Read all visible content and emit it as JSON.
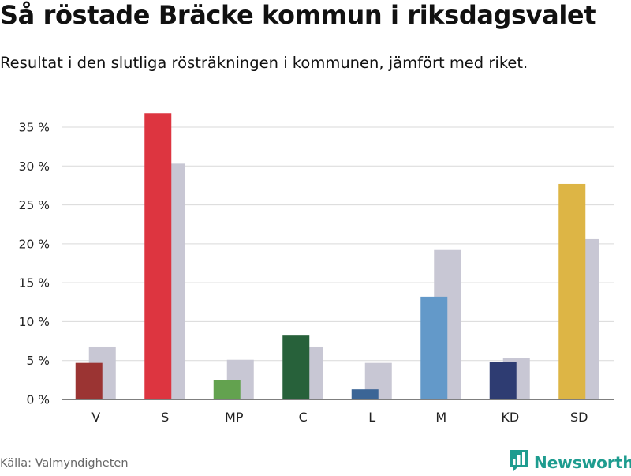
{
  "title": "Så röstade Bräcke kommun i riksdagsvalet",
  "subtitle": "Resultat i den slutliga rösträkningen i kommunen, jämfört med riket.",
  "source": "Källa: Valmyndigheten",
  "brand": {
    "name": "Newsworthy",
    "icon": "newsworthy-logo-icon",
    "color": "#1e9c8f"
  },
  "chart_data": {
    "type": "bar",
    "categories": [
      "V",
      "S",
      "MP",
      "C",
      "L",
      "M",
      "KD",
      "SD"
    ],
    "series": [
      {
        "values": [
          4.7,
          36.8,
          2.5,
          8.2,
          1.3,
          13.2,
          4.8,
          27.7
        ],
        "colors": [
          "#9b3433",
          "#dd3540",
          "#63a24f",
          "#27613a",
          "#3b6596",
          "#6399c9",
          "#2e3c72",
          "#ddb545"
        ]
      },
      {
        "values": [
          6.8,
          30.3,
          5.1,
          6.8,
          4.7,
          19.2,
          5.3,
          20.6
        ],
        "color": "#c8c7d4"
      }
    ],
    "y_ticks": [
      "0 %",
      "5 %",
      "10 %",
      "15 %",
      "20 %",
      "25 %",
      "30 %",
      "35 %"
    ],
    "ylim": [
      0,
      35
    ],
    "grid": true
  }
}
